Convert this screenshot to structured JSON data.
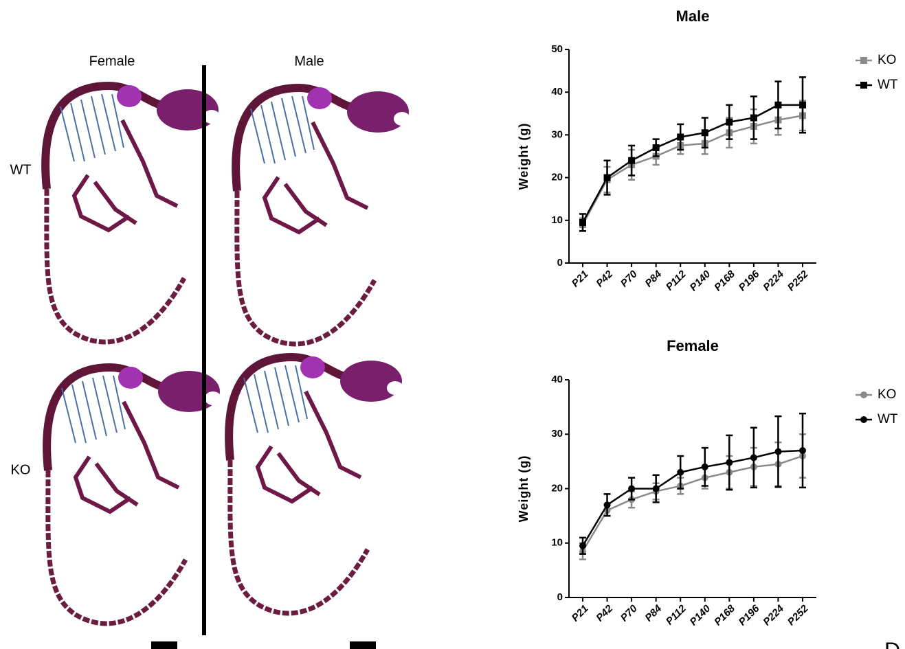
{
  "figure": {
    "columns": [
      "Female",
      "Male"
    ],
    "rows": [
      "WT",
      "KO"
    ],
    "panel_label": "D"
  },
  "chart_data": [
    {
      "type": "line",
      "title": "Male",
      "y_label": "Weight  (g)",
      "categories": [
        "P21",
        "P42",
        "P70",
        "P84",
        "P112",
        "P140",
        "P168",
        "P196",
        "P224",
        "P252"
      ],
      "ylim": [
        0,
        50
      ],
      "yticks": [
        0,
        10,
        20,
        30,
        40,
        50
      ],
      "series": [
        {
          "name": "KO",
          "color": "#8a8a8a",
          "marker": "square",
          "values": [
            9,
            19.5,
            23,
            25,
            27.5,
            28,
            30.5,
            32,
            33.5,
            34.5
          ],
          "errors": [
            1.5,
            3,
            3.5,
            2,
            2,
            2.5,
            3.5,
            4,
            3.5,
            3.5
          ]
        },
        {
          "name": "WT",
          "color": "#000000",
          "marker": "square",
          "values": [
            9.5,
            20,
            24,
            27,
            29.5,
            30.5,
            33,
            34,
            37,
            37
          ],
          "errors": [
            2,
            4,
            3.5,
            2,
            3,
            3.5,
            4,
            5,
            5.5,
            6.5
          ]
        }
      ]
    },
    {
      "type": "line",
      "title": "Female",
      "y_label": "Weight  (g)",
      "categories": [
        "P21",
        "P42",
        "P70",
        "P84",
        "P112",
        "P140",
        "P168",
        "P196",
        "P224",
        "P252"
      ],
      "ylim": [
        0,
        40
      ],
      "yticks": [
        0,
        10,
        20,
        30,
        40
      ],
      "series": [
        {
          "name": "KO",
          "color": "#8a8a8a",
          "marker": "circle",
          "values": [
            8.5,
            16,
            18,
            19.5,
            20.5,
            22,
            23,
            24,
            24.5,
            26
          ],
          "errors": [
            1.5,
            1,
            1.5,
            1.5,
            1.5,
            2,
            3,
            3.5,
            4,
            4
          ]
        },
        {
          "name": "WT",
          "color": "#000000",
          "marker": "circle",
          "values": [
            9.5,
            17,
            20,
            20,
            23,
            24,
            24.8,
            25.7,
            26.8,
            27
          ],
          "errors": [
            1.5,
            2,
            2,
            2.5,
            3,
            3.5,
            5,
            5.5,
            6.5,
            6.8
          ]
        }
      ]
    }
  ]
}
